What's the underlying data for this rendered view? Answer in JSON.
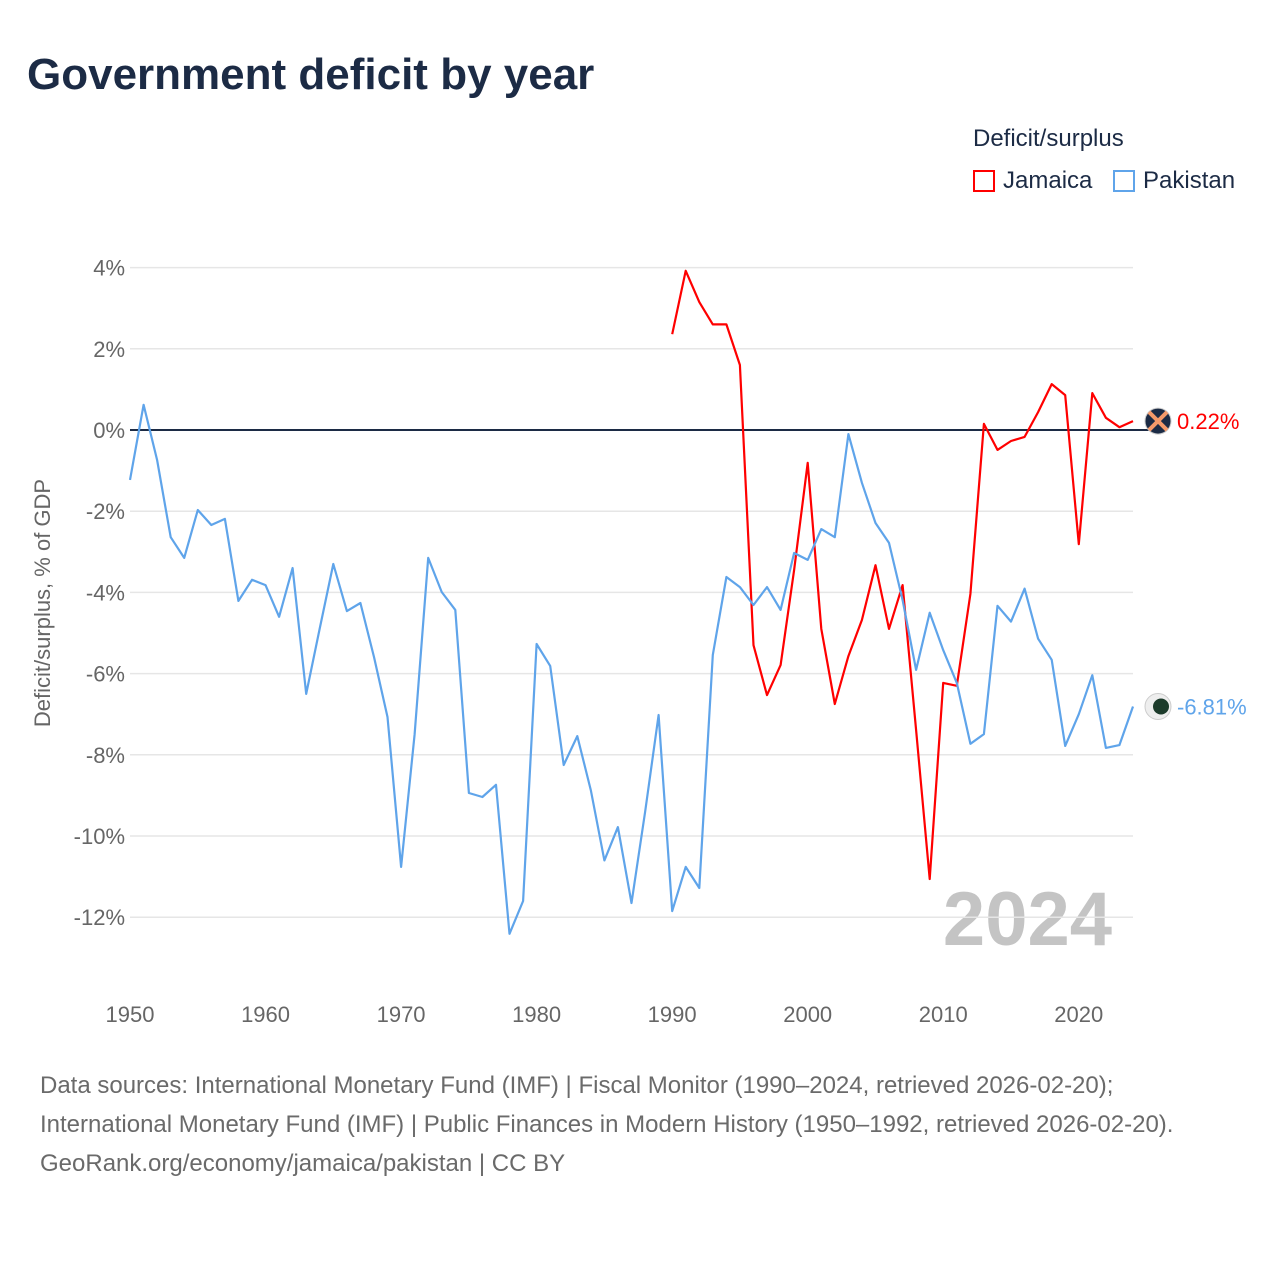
{
  "title": "Government deficit by year",
  "legend": {
    "title": "Deficit/surplus",
    "items": [
      {
        "label": "Jamaica",
        "color": "#ff0000"
      },
      {
        "label": "Pakistan",
        "color": "#5fa4ea"
      }
    ]
  },
  "chart_data": {
    "type": "line",
    "ylabel": "Deficit/surplus, % of GDP",
    "xlabel": "",
    "xlim": [
      1950,
      2024
    ],
    "ylim": [
      -13.5,
      4.5
    ],
    "x_ticks": [
      1950,
      1960,
      1970,
      1980,
      1990,
      2000,
      2010,
      2020
    ],
    "y_ticks": [
      4,
      2,
      0,
      -2,
      -4,
      -6,
      -8,
      -10,
      -12
    ],
    "y_tick_labels": [
      "4%",
      "2%",
      "0%",
      "-2%",
      "-4%",
      "-6%",
      "-8%",
      "-10%",
      "-12%"
    ],
    "grid": true,
    "year_watermark": "2024",
    "series": [
      {
        "name": "Jamaica",
        "color": "#ff0000",
        "start_year": 1990,
        "end_label": "0.22%",
        "values": [
          2.36,
          3.92,
          3.15,
          2.6,
          2.6,
          1.6,
          -5.3,
          -6.53,
          -5.79,
          -3.45,
          -0.81,
          -4.9,
          -6.75,
          -5.57,
          -4.68,
          -3.33,
          -4.9,
          -3.82,
          -7.39,
          -11.06,
          -6.23,
          -6.3,
          -4.04,
          0.15,
          -0.49,
          -0.27,
          -0.17,
          0.44,
          1.13,
          0.86,
          -2.81,
          0.91,
          0.3,
          0.07,
          0.22
        ]
      },
      {
        "name": "Pakistan",
        "color": "#5fa4ea",
        "start_year": 1950,
        "end_label": "-6.81%",
        "values": [
          -1.23,
          0.62,
          -0.74,
          -2.64,
          -3.15,
          -1.97,
          -2.34,
          -2.19,
          -4.21,
          -3.69,
          -3.82,
          -4.6,
          -3.4,
          -6.5,
          -4.88,
          -3.3,
          -4.46,
          -4.26,
          -5.59,
          -7.07,
          -10.76,
          -7.5,
          -3.15,
          -3.99,
          -4.43,
          -8.94,
          -9.04,
          -8.74,
          -12.41,
          -11.6,
          -5.27,
          -5.81,
          -8.25,
          -7.54,
          -8.87,
          -10.6,
          -9.78,
          -11.65,
          -9.41,
          -7.02,
          -11.85,
          -10.76,
          -11.28,
          -5.54,
          -3.62,
          -3.87,
          -4.31,
          -3.87,
          -4.43,
          -3.03,
          -3.2,
          -2.44,
          -2.64,
          -0.1,
          -1.3,
          -2.29,
          -2.78,
          -4.19,
          -5.91,
          -4.5,
          -5.42,
          -6.23,
          -7.73,
          -7.49,
          -4.33,
          -4.72,
          -3.91,
          -5.14,
          -5.66,
          -7.78,
          -7.0,
          -6.04,
          -7.83,
          -7.76,
          -6.81
        ]
      }
    ]
  },
  "footer": {
    "sources": "Data sources: International Monetary Fund (IMF) | Fiscal Monitor (1990–2024, retrieved 2026-02-20); International Monetary Fund (IMF) | Public Finances in Modern History (1950–1992, retrieved 2026-02-20).",
    "credit": "GeoRank.org/economy/jamaica/pakistan | CC BY"
  }
}
